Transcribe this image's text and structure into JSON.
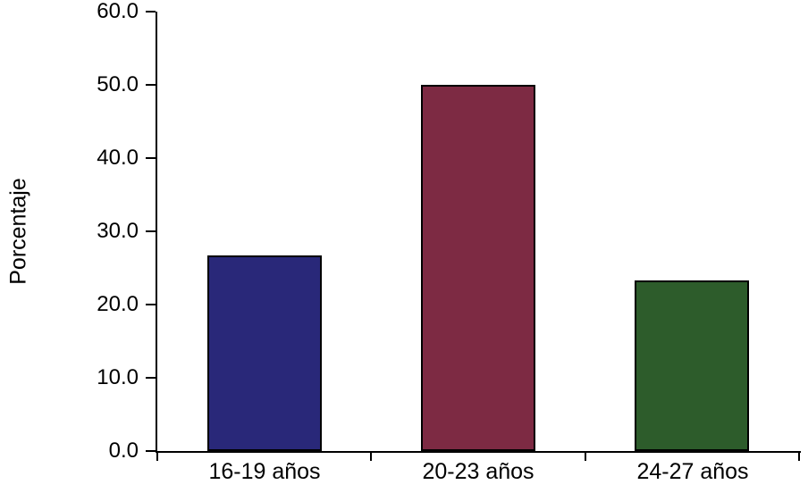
{
  "chart_data": {
    "type": "bar",
    "title": "",
    "categories": [
      "16-19 años",
      "20-23 años",
      "24-27 años"
    ],
    "values": [
      26.7,
      50.0,
      23.3
    ],
    "xlabel": "",
    "ylabel": "Porcentaje",
    "ylim": [
      0,
      60
    ],
    "ytick_step": 10,
    "ytick_labels": [
      "0.0",
      "10.0",
      "20.0",
      "30.0",
      "40.0",
      "50.0",
      "60.0"
    ],
    "bar_colors": [
      "#292879",
      "#7d2a43",
      "#2d5c2b"
    ],
    "bar_border_color": "#000000",
    "axis_color": "#000000",
    "background": "#ffffff",
    "grid": false,
    "legend": false
  }
}
